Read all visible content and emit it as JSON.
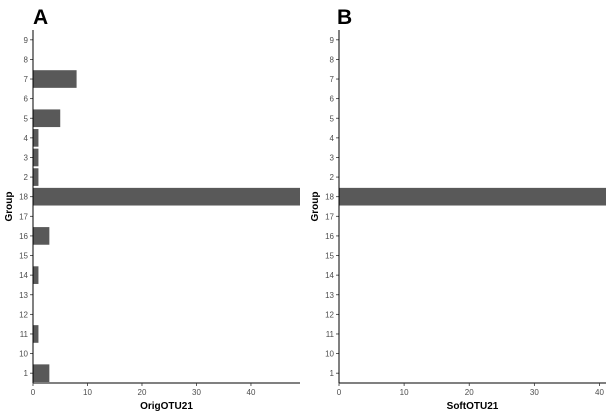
{
  "chart_data": [
    {
      "type": "bar",
      "orientation": "horizontal",
      "panel_label": "A",
      "xlabel": "OrigOTU21",
      "ylabel": "Group",
      "xlim": [
        0,
        49
      ],
      "xticks": [
        "0",
        "10",
        "20",
        "30",
        "40"
      ],
      "categories": [
        "9",
        "8",
        "7",
        "6",
        "5",
        "4",
        "3",
        "2",
        "18",
        "17",
        "16",
        "15",
        "14",
        "13",
        "12",
        "11",
        "10",
        "1"
      ],
      "values": [
        0,
        0,
        8,
        0,
        5,
        1,
        1,
        1,
        49,
        0,
        3,
        0,
        1,
        0,
        0,
        1,
        0,
        3
      ],
      "grid": false,
      "bar_color": "#595959"
    },
    {
      "type": "bar",
      "orientation": "horizontal",
      "panel_label": "B",
      "xlabel": "SoftOTU21",
      "ylabel": "Group",
      "xlim": [
        0,
        41
      ],
      "xticks": [
        "0",
        "10",
        "20",
        "30",
        "40"
      ],
      "categories": [
        "9",
        "8",
        "7",
        "6",
        "5",
        "4",
        "3",
        "2",
        "18",
        "17",
        "16",
        "15",
        "14",
        "13",
        "12",
        "11",
        "10",
        "1"
      ],
      "values": [
        0,
        0,
        0,
        0,
        0,
        0,
        0,
        0,
        41,
        0,
        0,
        0,
        0,
        0,
        0,
        0,
        0,
        0
      ],
      "grid": false,
      "bar_color": "#595959"
    }
  ]
}
